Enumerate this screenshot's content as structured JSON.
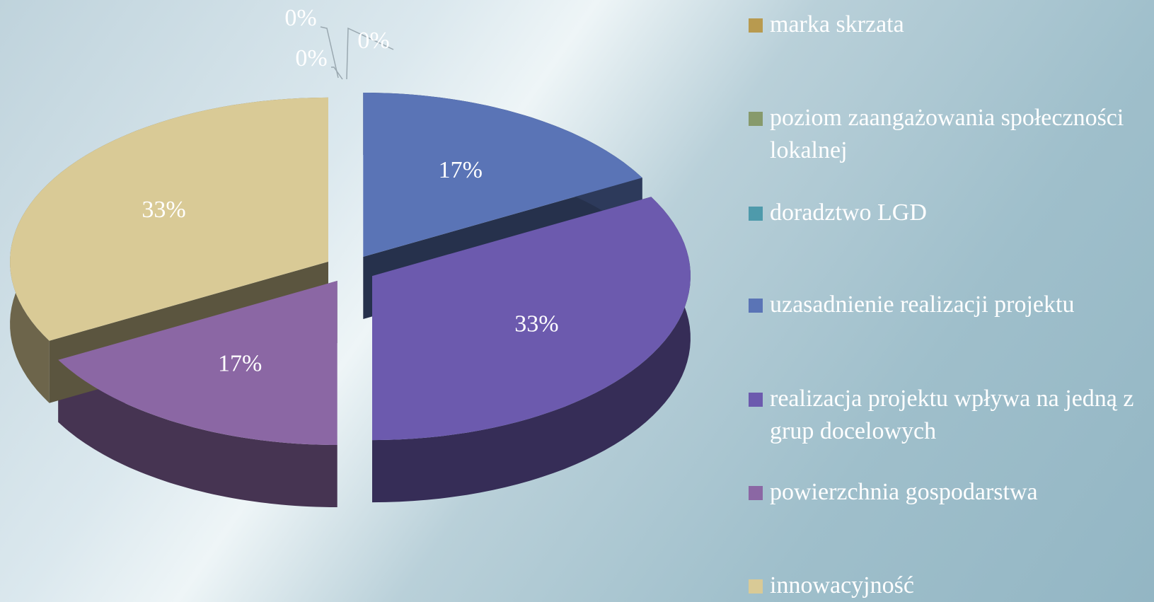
{
  "chart_data": {
    "type": "pie",
    "categories": [
      "marka skrzata",
      "poziom zaangażowania społeczności lokalnej",
      "doradztwo LGD",
      "uzasadnienie realizacji projektu",
      "realizacja projektu wpływa na jedną z grup docelowych",
      "powierzchnia gospodarstwa",
      "innowacyjność"
    ],
    "values": [
      0,
      0,
      0,
      17,
      33,
      17,
      33
    ],
    "value_labels": [
      "0%",
      "0%",
      "0%",
      "17%",
      "33%",
      "17%",
      "33%"
    ],
    "colors": [
      "#b89a4f",
      "#879a6c",
      "#4e9aab",
      "#5a74b6",
      "#6c5aae",
      "#8b67a4",
      "#d9ca96"
    ]
  }
}
